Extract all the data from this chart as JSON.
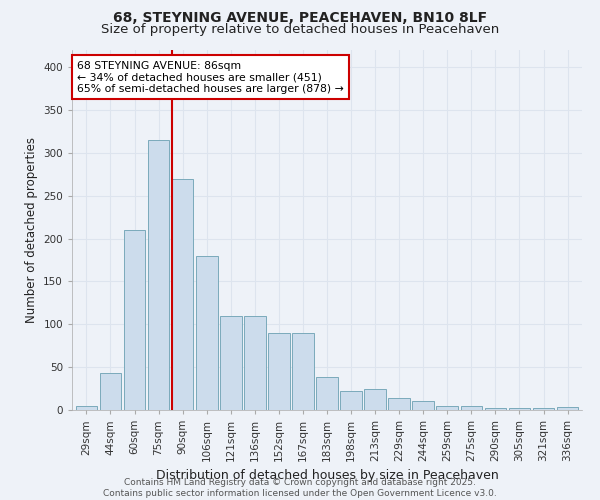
{
  "title1": "68, STEYNING AVENUE, PEACEHAVEN, BN10 8LF",
  "title2": "Size of property relative to detached houses in Peacehaven",
  "xlabel": "Distribution of detached houses by size in Peacehaven",
  "ylabel": "Number of detached properties",
  "categories": [
    "29sqm",
    "44sqm",
    "60sqm",
    "75sqm",
    "90sqm",
    "106sqm",
    "121sqm",
    "136sqm",
    "152sqm",
    "167sqm",
    "183sqm",
    "198sqm",
    "213sqm",
    "229sqm",
    "244sqm",
    "259sqm",
    "275sqm",
    "290sqm",
    "305sqm",
    "321sqm",
    "336sqm"
  ],
  "values": [
    5,
    43,
    210,
    315,
    270,
    180,
    110,
    110,
    90,
    90,
    38,
    22,
    25,
    14,
    10,
    5,
    5,
    2,
    2,
    2,
    3
  ],
  "bar_color": "#ccdcec",
  "bar_edge_color": "#7aaabb",
  "grid_color": "#dde4ee",
  "background_color": "#eef2f8",
  "vline_x": 3.55,
  "vline_color": "#cc0000",
  "annotation_text": "68 STEYNING AVENUE: 86sqm\n← 34% of detached houses are smaller (451)\n65% of semi-detached houses are larger (878) →",
  "annotation_box_color": "#ffffff",
  "annotation_box_edge": "#cc0000",
  "ylim": [
    0,
    420
  ],
  "yticks": [
    0,
    50,
    100,
    150,
    200,
    250,
    300,
    350,
    400
  ],
  "footer_text": "Contains HM Land Registry data © Crown copyright and database right 2025.\nContains public sector information licensed under the Open Government Licence v3.0.",
  "title1_fontsize": 10,
  "title2_fontsize": 9.5,
  "xlabel_fontsize": 9,
  "ylabel_fontsize": 8.5,
  "tick_fontsize": 7.5,
  "annotation_fontsize": 7.8,
  "footer_fontsize": 6.5
}
